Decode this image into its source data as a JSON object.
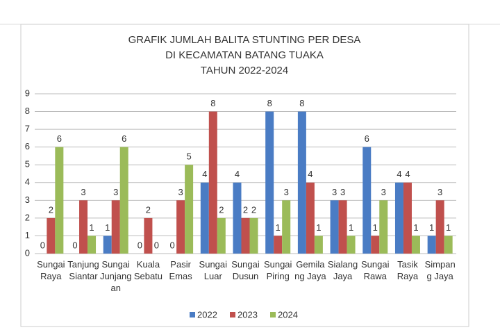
{
  "chart_data": {
    "type": "bar",
    "title": [
      "GRAFIK JUMLAH BALITA STUNTING PER DESA",
      "DI KECAMATAN BATANG TUAKA",
      "TAHUN 2022-2024"
    ],
    "categories": [
      "Sungai Raya",
      "Tanjung Siantar",
      "Sungai Junjangan",
      "Kuala Sebatu",
      "Pasir Emas",
      "Sungai Luar",
      "Sungai Dusun",
      "Sungai Piring",
      "Gemilang Jaya",
      "Sialang Jaya",
      "Sungai Rawa",
      "Tasik Raya",
      "Simpang Jaya"
    ],
    "series": [
      {
        "name": "2022",
        "color": "#4a7cc4",
        "values": [
          0,
          0,
          1,
          0,
          0,
          4,
          4,
          8,
          8,
          3,
          6,
          4,
          1
        ]
      },
      {
        "name": "2023",
        "color": "#c0504d",
        "values": [
          2,
          3,
          3,
          2,
          3,
          8,
          2,
          1,
          4,
          3,
          1,
          4,
          3
        ]
      },
      {
        "name": "2024",
        "color": "#9bbb59",
        "values": [
          6,
          1,
          6,
          0,
          5,
          2,
          2,
          3,
          1,
          1,
          3,
          1,
          1
        ]
      }
    ],
    "ylim": [
      0,
      9
    ],
    "yticks": [
      0,
      1,
      2,
      3,
      4,
      5,
      6,
      7,
      8,
      9
    ],
    "grid": true,
    "legend": "bottom"
  }
}
